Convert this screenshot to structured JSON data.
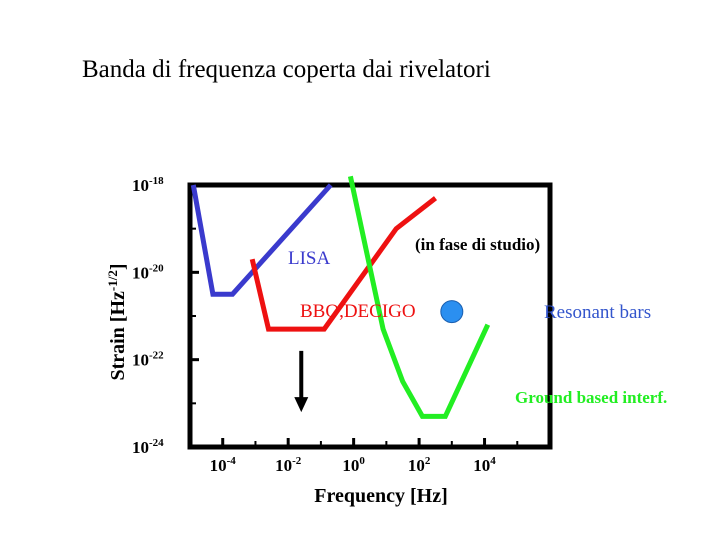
{
  "slide": {
    "title": "Banda di frequenza coperta dai rivelatori"
  },
  "colors": {
    "lisa": "#3a3acd",
    "bbo": "#ee1111",
    "ground": "#22ee22",
    "resonant_dot": "#2b8ff0",
    "resonant_label": "#3355cc",
    "axis": "#000000"
  },
  "chart_data": {
    "type": "line",
    "title": "",
    "xlabel": "Frequency [Hz]",
    "ylabel": "Strain [Hz-1/2]",
    "ylabel_base": "Strain [Hz",
    "ylabel_exp": "-1/2",
    "ylabel_close": "]",
    "xscale": "log",
    "yscale": "log",
    "x_log_range": [
      -5,
      6
    ],
    "y_log_range": [
      -24,
      -18
    ],
    "xticks": [
      {
        "exp": -4,
        "base": "10",
        "sup": "-4"
      },
      {
        "exp": -2,
        "base": "10",
        "sup": "-2"
      },
      {
        "exp": 0,
        "base": "10",
        "sup": "0"
      },
      {
        "exp": 2,
        "base": "10",
        "sup": "2"
      },
      {
        "exp": 4,
        "base": "10",
        "sup": "4"
      }
    ],
    "yticks": [
      {
        "exp": -18,
        "base": "10",
        "sup": "-18"
      },
      {
        "exp": -20,
        "base": "10",
        "sup": "-20"
      },
      {
        "exp": -22,
        "base": "10",
        "sup": "-22"
      },
      {
        "exp": -24,
        "base": "10",
        "sup": "-24"
      }
    ],
    "series": [
      {
        "name": "LISA",
        "color_key": "lisa",
        "points_log": [
          [
            -4.9,
            -18.0
          ],
          [
            -4.3,
            -20.5
          ],
          [
            -3.7,
            -20.5
          ],
          [
            -0.7,
            -18.0
          ]
        ]
      },
      {
        "name": "BBO,DECIGO",
        "color_key": "bbo",
        "points_log": [
          [
            -3.1,
            -19.7
          ],
          [
            -2.6,
            -21.3
          ],
          [
            -1.3,
            -21.3
          ],
          [
            -0.9,
            -21.3
          ],
          [
            1.3,
            -19.0
          ],
          [
            2.5,
            -18.3
          ]
        ]
      },
      {
        "name": "Ground based interf.",
        "color_key": "ground",
        "points_log": [
          [
            -0.1,
            -17.8
          ],
          [
            0.9,
            -21.3
          ],
          [
            1.5,
            -22.5
          ],
          [
            2.1,
            -23.3
          ],
          [
            2.8,
            -23.3
          ],
          [
            4.1,
            -21.2
          ]
        ]
      }
    ],
    "points": [
      {
        "name": "Resonant bars",
        "x_log": 3.0,
        "y_log": -20.9
      }
    ],
    "annotations": {
      "lisa": "LISA",
      "studio": "(in fase di studio)",
      "bbo": "BBO,DECIGO",
      "resonant": "Resonant bars",
      "ground": "Ground based interf."
    },
    "arrow": {
      "x_log": -1.6,
      "from_y_log": -21.8,
      "to_y_log": -23.2
    },
    "grid": false,
    "legend": "none"
  }
}
